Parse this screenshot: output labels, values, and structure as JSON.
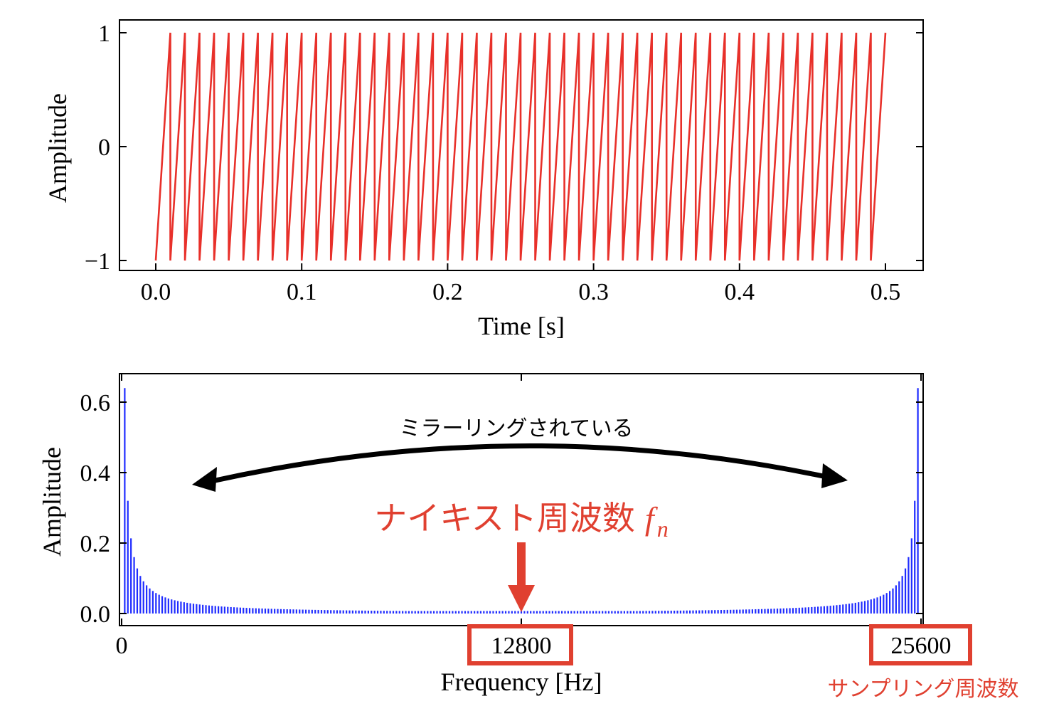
{
  "chart_data": [
    {
      "type": "line",
      "signal": "sawtooth",
      "frequency_hz": 100,
      "amplitude_range": [
        -1,
        1
      ],
      "duration_s": 0.5,
      "xlabel": "Time [s]",
      "ylabel": "Amplitude",
      "xlim": [
        0,
        0.5
      ],
      "ylim": [
        -1,
        1
      ],
      "xticks": [
        0.0,
        0.1,
        0.2,
        0.3,
        0.4,
        0.5
      ],
      "xtick_labels": [
        "0.0",
        "0.1",
        "0.2",
        "0.3",
        "0.4",
        "0.5"
      ],
      "yticks": [
        -1,
        0,
        1
      ],
      "ytick_labels": [
        "−1",
        "0",
        "1"
      ],
      "color": "#e8302a"
    },
    {
      "type": "bar",
      "xlabel": "Frequency [Hz]",
      "ylabel": "Amplitude",
      "xlim": [
        0,
        25600
      ],
      "ylim": [
        0,
        0.65
      ],
      "bin_spacing_hz": 100,
      "peak_amplitude": 0.64,
      "amplitude_model": "~0.64/k for harmonic k, mirrored about 12800 Hz",
      "xticks": [
        0,
        12800,
        25600
      ],
      "xtick_labels": [
        "0",
        "12800",
        "25600"
      ],
      "yticks": [
        0.0,
        0.2,
        0.4,
        0.6
      ],
      "ytick_labels": [
        "0.0",
        "0.2",
        "0.4",
        "0.6"
      ],
      "color": "#1f2cff",
      "annotations": {
        "mirroring": "ミラーリングされている",
        "nyquist": "ナイキスト周波数",
        "nyquist_symbol": "f",
        "nyquist_subscript": "n",
        "sampling": "サンプリング周波数"
      }
    }
  ],
  "colors": {
    "annotation_red": "#e04030",
    "arrow_black": "#000000"
  }
}
